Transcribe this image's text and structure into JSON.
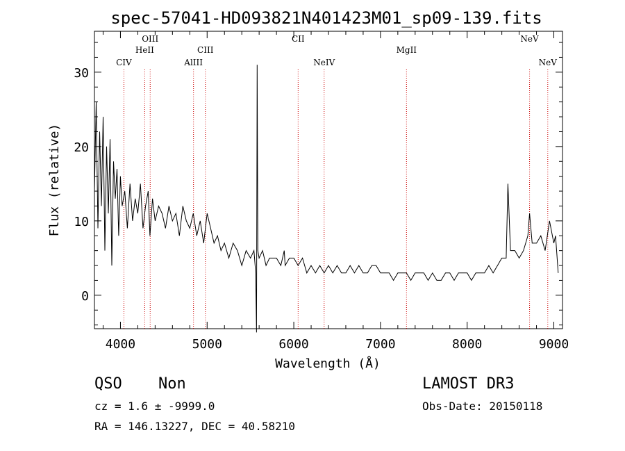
{
  "chart_data": {
    "type": "line",
    "title": "spec-57041-HD093821N401423M01_sp09-139.fits",
    "xlabel": "Wavelength (Å)",
    "ylabel": "Flux (relative)",
    "xlim": [
      3700,
      9100
    ],
    "ylim": [
      -4.5,
      35.5
    ],
    "xticks": [
      4000,
      5000,
      6000,
      7000,
      8000,
      9000
    ],
    "yticks": [
      0,
      10,
      20,
      30
    ],
    "grid": false,
    "series": [
      {
        "x": [
          3700,
          3720,
          3740,
          3760,
          3780,
          3800,
          3820,
          3840,
          3860,
          3880,
          3900,
          3920,
          3940,
          3960,
          3980,
          4000,
          4020,
          4050,
          4080,
          4110,
          4140,
          4170,
          4200,
          4230,
          4260,
          4290,
          4320,
          4340,
          4370,
          4400,
          4440,
          4480,
          4520,
          4560,
          4600,
          4640,
          4680,
          4720,
          4760,
          4800,
          4840,
          4880,
          4920,
          4960,
          5000,
          5040,
          5080,
          5120,
          5160,
          5200,
          5250,
          5300,
          5350,
          5400,
          5450,
          5500,
          5540,
          5560,
          5570,
          5577,
          5585,
          5600,
          5640,
          5680,
          5720,
          5760,
          5800,
          5850,
          5890,
          5900,
          5950,
          6000,
          6050,
          6100,
          6150,
          6200,
          6250,
          6300,
          6350,
          6400,
          6450,
          6500,
          6550,
          6600,
          6650,
          6700,
          6750,
          6800,
          6850,
          6900,
          6950,
          7000,
          7050,
          7100,
          7150,
          7200,
          7250,
          7300,
          7350,
          7400,
          7450,
          7500,
          7550,
          7600,
          7650,
          7700,
          7750,
          7800,
          7850,
          7900,
          7950,
          8000,
          8050,
          8100,
          8150,
          8200,
          8250,
          8300,
          8350,
          8400,
          8450,
          8470,
          8500,
          8550,
          8600,
          8650,
          8700,
          8720,
          8750,
          8800,
          8850,
          8900,
          8950,
          9000,
          9020,
          9050
        ],
        "y": [
          14,
          26,
          9,
          22,
          12,
          24,
          6,
          20,
          11,
          21,
          4,
          18,
          13,
          17,
          8,
          16,
          12,
          14,
          9,
          15,
          10,
          13,
          11,
          15,
          9,
          12,
          14,
          8,
          13,
          10,
          12,
          11,
          9,
          12,
          10,
          11,
          8,
          12,
          10,
          9,
          11,
          8,
          10,
          7,
          11,
          9,
          7,
          8,
          6,
          7,
          5,
          7,
          6,
          4,
          6,
          5,
          6,
          3,
          -5,
          31,
          6,
          5,
          6,
          4,
          5,
          5,
          5,
          4,
          6,
          4,
          5,
          5,
          4,
          5,
          3,
          4,
          3,
          4,
          3,
          4,
          3,
          4,
          3,
          3,
          4,
          3,
          4,
          3,
          3,
          4,
          4,
          3,
          3,
          3,
          2,
          3,
          3,
          3,
          2,
          3,
          3,
          3,
          2,
          3,
          2,
          2,
          3,
          3,
          2,
          3,
          3,
          3,
          2,
          3,
          3,
          3,
          4,
          3,
          4,
          5,
          5,
          15,
          6,
          6,
          5,
          6,
          8,
          11,
          7,
          7,
          8,
          6,
          10,
          7,
          8,
          3
        ]
      }
    ],
    "annotations": [
      {
        "label": "CIV",
        "x": 4040
      },
      {
        "label": "HeII",
        "x": 4280
      },
      {
        "label": "OIII",
        "x": 4343
      },
      {
        "label": "AlIII",
        "x": 4843
      },
      {
        "label": "CIII",
        "x": 4980
      },
      {
        "label": "CII",
        "x": 6050
      },
      {
        "label": "NeIV",
        "x": 6350
      },
      {
        "label": "MgII",
        "x": 7300
      },
      {
        "label": "NeV",
        "x": 8720
      },
      {
        "label": "NeV",
        "x": 8930
      }
    ]
  },
  "info": {
    "class_text": "QSO",
    "subclass_text": "Non",
    "cz_text": "cz = 1.6 ± -9999.0",
    "radec_text": "RA = 146.13227, DEC =  40.58210",
    "survey_text": "LAMOST DR3",
    "obsdate_text": "Obs-Date: 20150118"
  },
  "colors": {
    "line_color": "#000000",
    "marker_line_color": "#cc0000"
  }
}
